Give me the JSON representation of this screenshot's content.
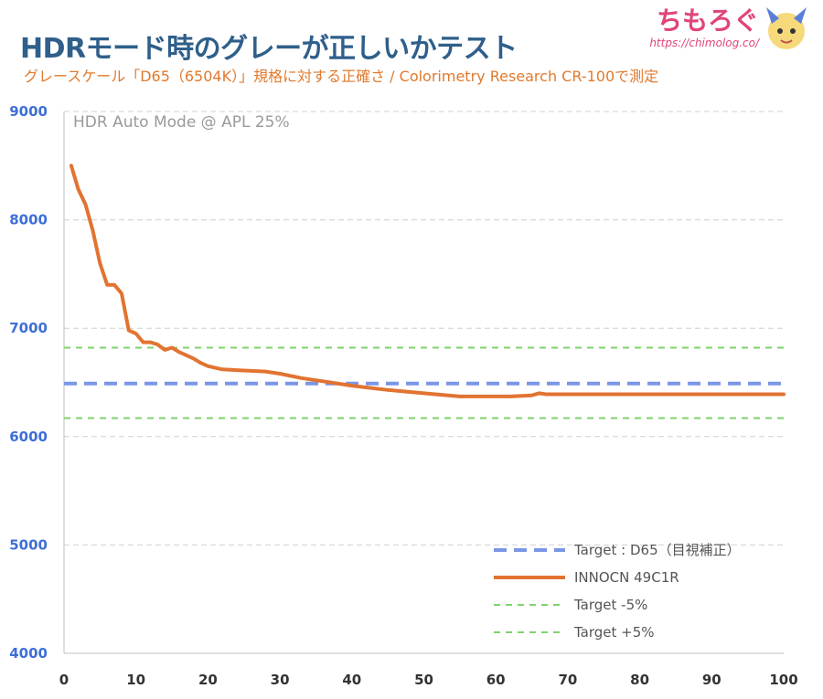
{
  "header": {
    "title": "HDRモード時のグレーが正しいかテスト",
    "subtitle": "グレースケール「D65（6504K）」規格に対する正確さ / Colorimetry Research CR-100で測定",
    "brand_name": "ちもろぐ",
    "brand_url": "https://chimolog.co/"
  },
  "colors": {
    "title": "#2f5f8a",
    "subtitle": "#e07a2e",
    "brand": "#e0447a",
    "target_d65": "#7b96e6",
    "measured": "#e27331",
    "tolerance": "#7fd36b",
    "grid": "#d0d0d0",
    "y_ticks": "#3e6fd6"
  },
  "chart_data": {
    "type": "line",
    "annotation": "HDR Auto Mode @ APL 25%",
    "xlim": [
      0,
      100
    ],
    "ylim": [
      4000,
      9000
    ],
    "x_ticks": [
      "0",
      "10",
      "20",
      "30",
      "40",
      "50",
      "60",
      "70",
      "80",
      "90",
      "100"
    ],
    "y_ticks": [
      "4000",
      "5000",
      "6000",
      "7000",
      "8000",
      "9000"
    ],
    "grid": "horizontal dashed",
    "legend_position": "bottom-right",
    "series": [
      {
        "name": "Target : D65（目視補正）",
        "style": "dashed-thick",
        "color": "#7b96e6",
        "x": [
          0,
          100
        ],
        "y": [
          6490,
          6490
        ]
      },
      {
        "name": "INNOCN 49C1R",
        "style": "solid",
        "color": "#e27331",
        "x": [
          1,
          2,
          3,
          4,
          5,
          6,
          7,
          8,
          9,
          10,
          11,
          12,
          13,
          14,
          15,
          16,
          17,
          18,
          19,
          20,
          22,
          25,
          28,
          30,
          33,
          36,
          40,
          45,
          50,
          55,
          58,
          60,
          62,
          65,
          66,
          67,
          70,
          75,
          80,
          85,
          90,
          95,
          100
        ],
        "y": [
          8500,
          8280,
          8140,
          7900,
          7600,
          7400,
          7400,
          7320,
          6980,
          6950,
          6870,
          6870,
          6850,
          6800,
          6820,
          6780,
          6750,
          6720,
          6680,
          6650,
          6620,
          6610,
          6600,
          6580,
          6540,
          6510,
          6470,
          6430,
          6400,
          6370,
          6370,
          6370,
          6370,
          6380,
          6400,
          6390,
          6390,
          6390,
          6390,
          6390,
          6390,
          6390,
          6390
        ]
      },
      {
        "name": "Target -5%",
        "style": "dashed",
        "color": "#7fd36b",
        "x": [
          0,
          100
        ],
        "y": [
          6170,
          6170
        ]
      },
      {
        "name": "Target +5%",
        "style": "dashed",
        "color": "#7fd36b",
        "x": [
          0,
          100
        ],
        "y": [
          6820,
          6820
        ]
      }
    ]
  }
}
